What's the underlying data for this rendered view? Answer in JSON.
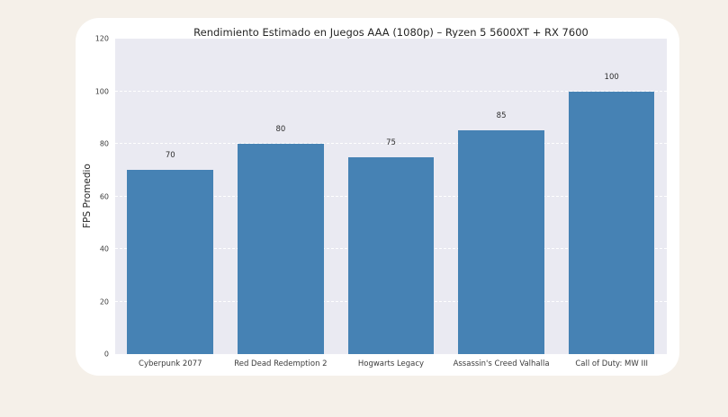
{
  "page": {
    "background_color": "#f5f0e9",
    "card_color": "#ffffff"
  },
  "chart_data": {
    "type": "bar",
    "title": "Rendimiento Estimado en Juegos AAA (1080p) – Ryzen 5 5600XT + RX 7600",
    "xlabel": "",
    "ylabel": "FPS Promedio",
    "categories": [
      "Cyberpunk 2077",
      "Red Dead Redemption 2",
      "Hogwarts Legacy",
      "Assassin's Creed Valhalla",
      "Call of Duty: MW III"
    ],
    "values": [
      70,
      80,
      75,
      85,
      100
    ],
    "bar_labels": [
      "70",
      "80",
      "75",
      "85",
      "100"
    ],
    "ylim": [
      0,
      120
    ],
    "yticks": [
      0,
      20,
      40,
      60,
      80,
      100,
      120
    ],
    "grid": true,
    "legend": "none",
    "bar_color": "#4682b4",
    "plot_background": "#eaeaf2",
    "gridline_color": "#ffffff"
  }
}
